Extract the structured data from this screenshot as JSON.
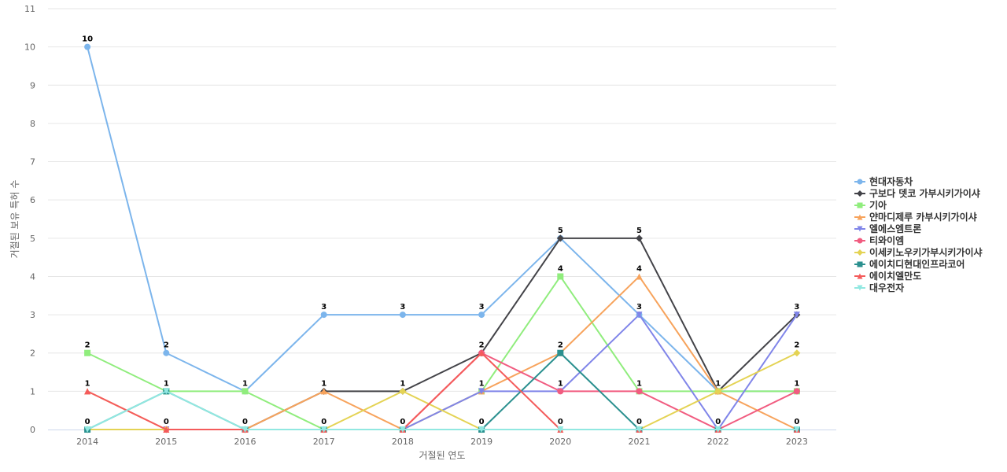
{
  "chart_data": {
    "type": "line",
    "title": "",
    "xlabel": "거절된 연도",
    "ylabel": "거절된 보유 특허 수",
    "x": [
      "2014",
      "2015",
      "2016",
      "2017",
      "2018",
      "2019",
      "2020",
      "2021",
      "2022",
      "2023"
    ],
    "ylim": [
      0,
      11
    ],
    "yticks": [
      0,
      1,
      2,
      3,
      4,
      5,
      6,
      7,
      8,
      9,
      10,
      11
    ],
    "grid": true,
    "legend_position": "right",
    "series": [
      {
        "name": "현대자동차",
        "color": "#7cb5ec",
        "marker": "circle",
        "values": [
          10,
          2,
          1,
          3,
          3,
          3,
          5,
          3,
          1,
          1
        ]
      },
      {
        "name": "구보다 뎃코 가부시키가이샤",
        "color": "#434348",
        "marker": "diamond",
        "values": [
          0,
          0,
          0,
          1,
          1,
          2,
          5,
          5,
          1,
          3
        ]
      },
      {
        "name": "기아",
        "color": "#90ed7d",
        "marker": "square",
        "values": [
          2,
          1,
          1,
          0,
          0,
          1,
          4,
          1,
          1,
          1
        ]
      },
      {
        "name": "얀마디제루 카부시키가이샤",
        "color": "#f7a35c",
        "marker": "triangle",
        "values": [
          1,
          0,
          0,
          1,
          0,
          1,
          2,
          4,
          1,
          0
        ]
      },
      {
        "name": "엘에스엠트론",
        "color": "#8085e9",
        "marker": "triangle-down",
        "values": [
          0,
          0,
          0,
          0,
          0,
          1,
          1,
          3,
          0,
          3
        ]
      },
      {
        "name": "티와이엠",
        "color": "#f15c80",
        "marker": "circle",
        "values": [
          0,
          0,
          0,
          0,
          0,
          2,
          1,
          1,
          0,
          1
        ]
      },
      {
        "name": "이세키노우키가부시키가이샤",
        "color": "#e4d354",
        "marker": "diamond",
        "values": [
          0,
          0,
          0,
          0,
          1,
          0,
          0,
          0,
          1,
          2
        ]
      },
      {
        "name": "에이치디현대인프라코어",
        "color": "#2b908f",
        "marker": "square",
        "values": [
          0,
          1,
          0,
          0,
          0,
          0,
          2,
          0,
          0,
          0
        ]
      },
      {
        "name": "에이치엘만도",
        "color": "#f45b5b",
        "marker": "triangle",
        "values": [
          1,
          0,
          0,
          0,
          0,
          2,
          0,
          0,
          0,
          0
        ]
      },
      {
        "name": "대우전자",
        "color": "#91e8e1",
        "marker": "triangle-down",
        "values": [
          0,
          1,
          0,
          0,
          0,
          0,
          0,
          0,
          0,
          0
        ]
      }
    ],
    "data_labels": {
      "2014": "10",
      "2014b": "2",
      "2014c": "1",
      "2014d": "0"
    }
  }
}
